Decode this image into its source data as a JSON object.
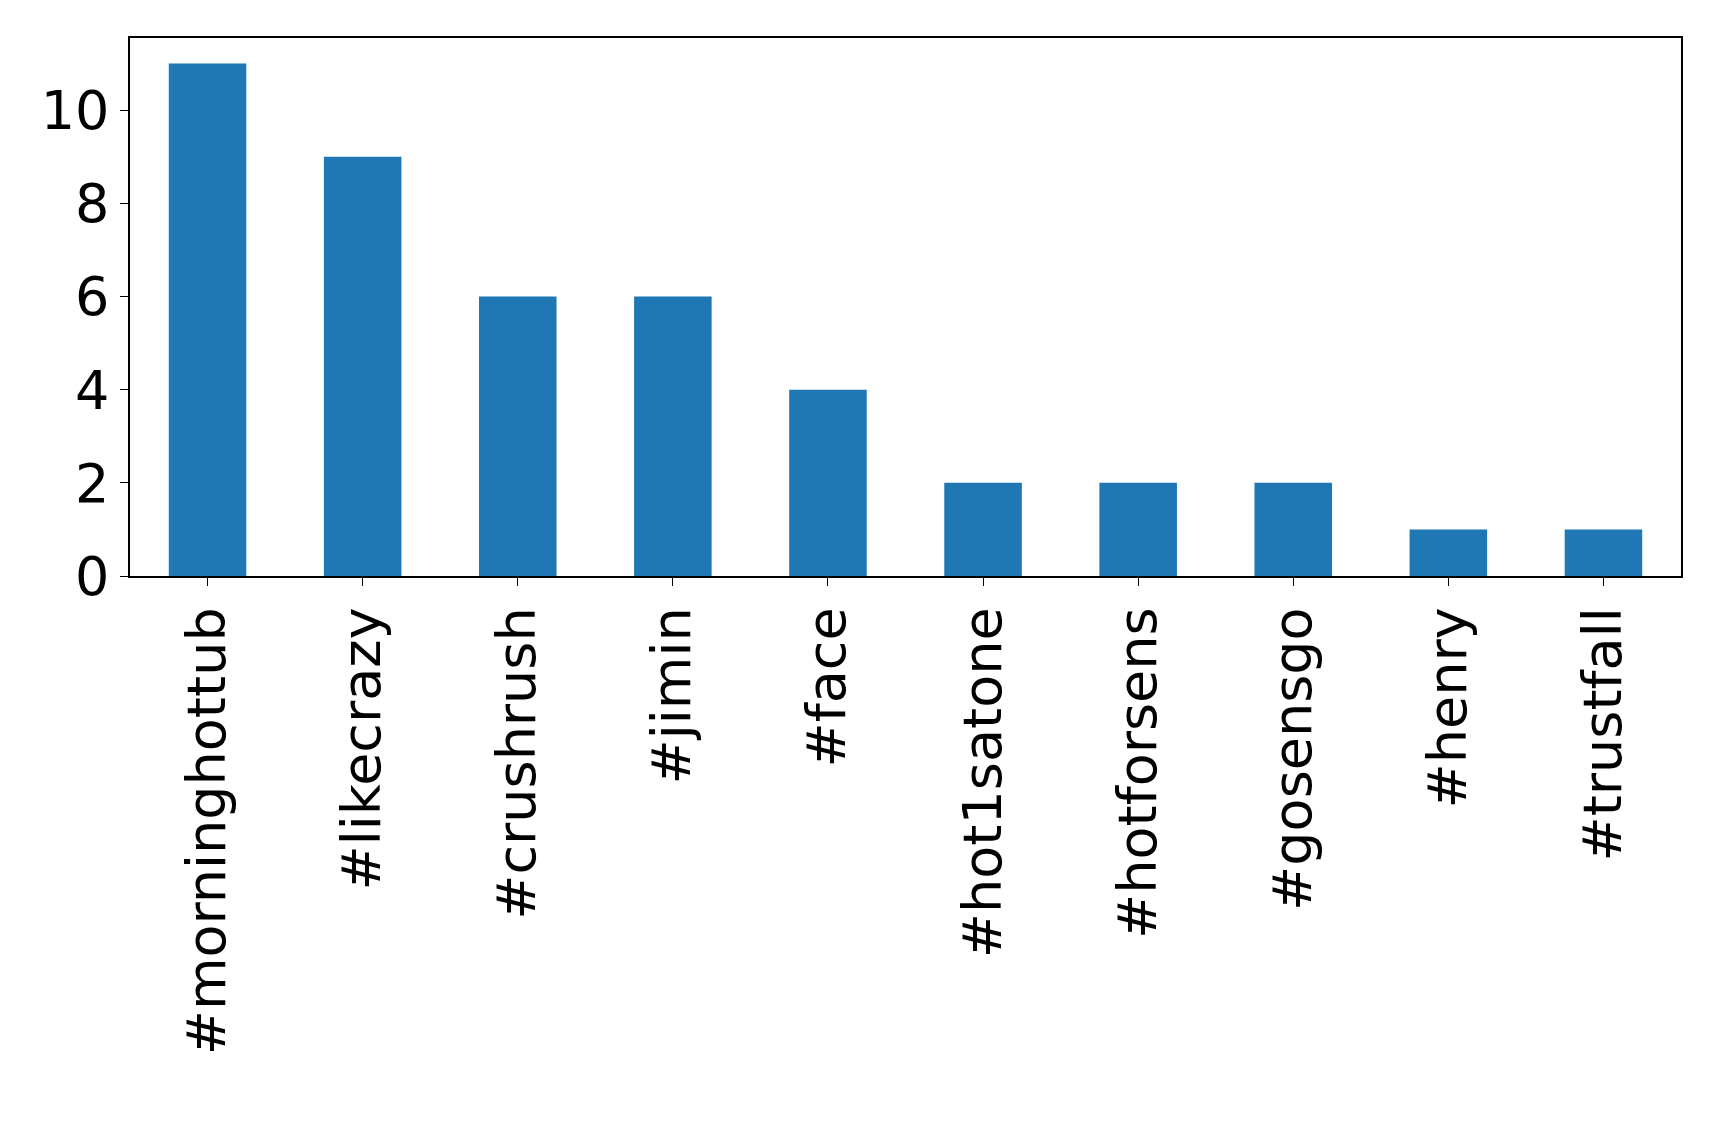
{
  "chart_data": {
    "type": "bar",
    "categories": [
      "#morninghottub",
      "#likecrazy",
      "#crushrush",
      "#jimin",
      "#face",
      "#hot1satone",
      "#hotforsens",
      "#gosensgo",
      "#henry",
      "#trustfall"
    ],
    "values": [
      11,
      9,
      6,
      6,
      4,
      2,
      2,
      2,
      1,
      1
    ],
    "color": "#1f77b4",
    "ylim": [
      0,
      11.55
    ],
    "yticks": [
      0,
      2,
      4,
      6,
      8,
      10
    ]
  }
}
